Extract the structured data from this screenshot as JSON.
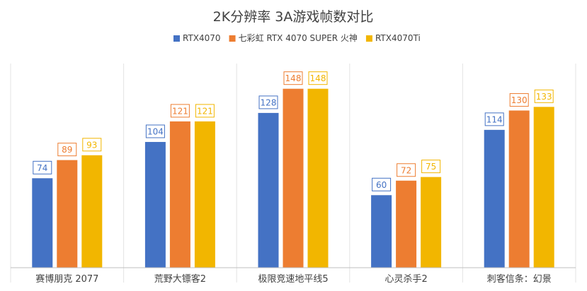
{
  "chart_data": {
    "type": "bar",
    "title": "2K分辨率 3A游戏帧数对比",
    "categories": [
      "赛博朋克 2077",
      "荒野大镖客2",
      "极限竞速地平线5",
      "心灵杀手2",
      "刺客信条：幻景"
    ],
    "series": [
      {
        "name": "RTX4070",
        "color": "#4472C4",
        "values": [
          74,
          104,
          128,
          60,
          114
        ]
      },
      {
        "name": "七彩虹 RTX 4070 SUPER 火神",
        "color": "#ED7D31",
        "values": [
          89,
          121,
          148,
          72,
          130
        ]
      },
      {
        "name": "RTX4070Ti",
        "color": "#F2B600",
        "values": [
          93,
          121,
          148,
          75,
          133
        ]
      }
    ],
    "ylim": [
      0,
      170
    ],
    "grid": false,
    "legend_position": "top-center",
    "data_labels": true,
    "category_dividers": true
  }
}
